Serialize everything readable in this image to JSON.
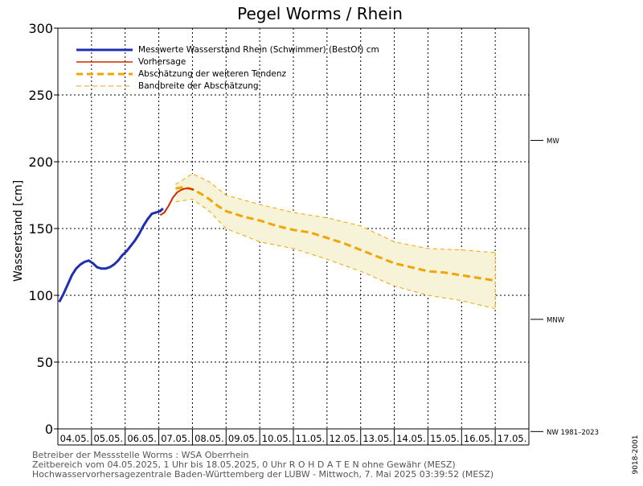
{
  "chart_data": {
    "type": "line",
    "title": "Pegel Worms / Rhein",
    "ylabel": "Wasserstand [cm]",
    "ylim": [
      0,
      300
    ],
    "y_ticks": [
      0,
      50,
      100,
      150,
      200,
      250,
      300
    ],
    "xlim_days": [
      0,
      14
    ],
    "x_labels": [
      "04.05.",
      "05.05.",
      "06.05.",
      "07.05.",
      "08.05.",
      "09.05.",
      "10.05.",
      "11.05.",
      "12.05.",
      "13.05.",
      "14.05.",
      "15.05.",
      "16.05.",
      "17.05."
    ],
    "grid": true,
    "legend_position": "top-left",
    "legend": [
      {
        "label": "Messwerte Wasserstand Rhein (Schwimmer) (BestOf)  cm",
        "color": "#1f2fb0",
        "style": "solid-thick"
      },
      {
        "label": "Vorhersage",
        "color": "#d02a00",
        "style": "solid"
      },
      {
        "label": "Abschätzung der weiteren Tendenz",
        "color": "#f0a500",
        "style": "dashed-thick"
      },
      {
        "label": "Bandbreite der Abschätzung",
        "color": "#f0a500",
        "style": "dashed-thin"
      }
    ],
    "reference_lines": [
      {
        "label": "MW",
        "value": 216
      },
      {
        "label": "MNW",
        "value": 82
      },
      {
        "label": "NW 1981–2023",
        "value": -2
      }
    ],
    "series": [
      {
        "name": "Messwerte Wasserstand Rhein (Schwimmer) (BestOf)  cm",
        "color": "#1f2fb0",
        "x": [
          "04.05. 01:00",
          "04.05. 04:00",
          "04.05. 07:00",
          "04.05. 10:00",
          "04.05. 13:00",
          "04.05. 16:00",
          "04.05. 19:00",
          "04.05. 22:00",
          "05.05. 01:00",
          "05.05. 04:00",
          "05.05. 07:00",
          "05.05. 10:00",
          "05.05. 13:00",
          "05.05. 16:00",
          "05.05. 19:00",
          "05.05. 22:00",
          "06.05. 01:00",
          "06.05. 04:00",
          "06.05. 07:00",
          "06.05. 10:00",
          "06.05. 13:00",
          "06.05. 16:00",
          "06.05. 19:00",
          "06.05. 22:00",
          "07.05. 01:00",
          "07.05. 03:00"
        ],
        "y": [
          95,
          101,
          108,
          115,
          120,
          123,
          125,
          126,
          124,
          121,
          120,
          120,
          121,
          123,
          126,
          130,
          133,
          137,
          141,
          146,
          152,
          157,
          161,
          162,
          163,
          165
        ]
      },
      {
        "name": "Vorhersage",
        "color": "#d02a00",
        "x": [
          "07.05. 01:00",
          "07.05. 04:00",
          "07.05. 07:00",
          "07.05. 10:00",
          "07.05. 13:00",
          "07.05. 16:00",
          "07.05. 19:00",
          "07.05. 22:00",
          "08.05. 01:00"
        ],
        "y": [
          160,
          162,
          167,
          173,
          177,
          179,
          180,
          180,
          179
        ]
      },
      {
        "name": "Abschätzung der weiteren Tendenz",
        "color": "#f0a500",
        "x": [
          "07.05. 12:00",
          "07.05. 18:00",
          "08.05. 01:00",
          "08.05. 06:00",
          "08.05. 12:00",
          "08.05. 18:00",
          "09.05. 00:00",
          "09.05. 12:00",
          "10.05. 00:00",
          "10.05. 12:00",
          "11.05. 00:00",
          "11.05. 12:00",
          "12.05. 00:00",
          "12.05. 12:00",
          "13.05. 00:00",
          "13.05. 12:00",
          "14.05. 00:00",
          "14.05. 12:00",
          "15.05. 00:00",
          "15.05. 12:00",
          "16.05. 00:00",
          "16.05. 12:00",
          "17.05. 00:00"
        ],
        "y": [
          180,
          181,
          179,
          176,
          172,
          167,
          163,
          159,
          156,
          152,
          149,
          147,
          143,
          139,
          134,
          129,
          124,
          121,
          118,
          117,
          115,
          113,
          111
        ]
      },
      {
        "name": "Bandbreite der Abschätzung (oben)",
        "color": "#f0a500",
        "x": [
          "07.05. 12:00",
          "08.05. 00:00",
          "08.05. 12:00",
          "09.05. 00:00",
          "10.05. 00:00",
          "11.05. 00:00",
          "12.05. 00:00",
          "13.05. 00:00",
          "14.05. 00:00",
          "15.05. 00:00",
          "16.05. 00:00",
          "17.05. 00:00"
        ],
        "y": [
          183,
          191,
          185,
          175,
          168,
          162,
          158,
          152,
          140,
          135,
          134,
          132
        ]
      },
      {
        "name": "Bandbreite der Abschätzung (unten)",
        "color": "#f0a500",
        "x": [
          "07.05. 12:00",
          "08.05. 00:00",
          "08.05. 12:00",
          "09.05. 00:00",
          "10.05. 00:00",
          "11.05. 00:00",
          "12.05. 00:00",
          "13.05. 00:00",
          "14.05. 00:00",
          "15.05. 00:00",
          "16.05. 00:00",
          "17.05. 00:00"
        ],
        "y": [
          170,
          172,
          163,
          150,
          140,
          135,
          127,
          118,
          107,
          100,
          96,
          90
        ]
      }
    ]
  },
  "side_text": "9018-2001",
  "footer": {
    "line1": "Betreiber der Messstelle Worms : WSA Oberrhein",
    "line2": "Zeitbereich vom 04.05.2025, 1 Uhr bis 18.05.2025, 0 Uhr   R O H D A T E N ohne Gewähr (MESZ)",
    "line3": "Hochwasservorhersagezentrale Baden-Württemberg der LUBW - Mittwoch, 7. Mai 2025 03:39:52 (MESZ)"
  }
}
